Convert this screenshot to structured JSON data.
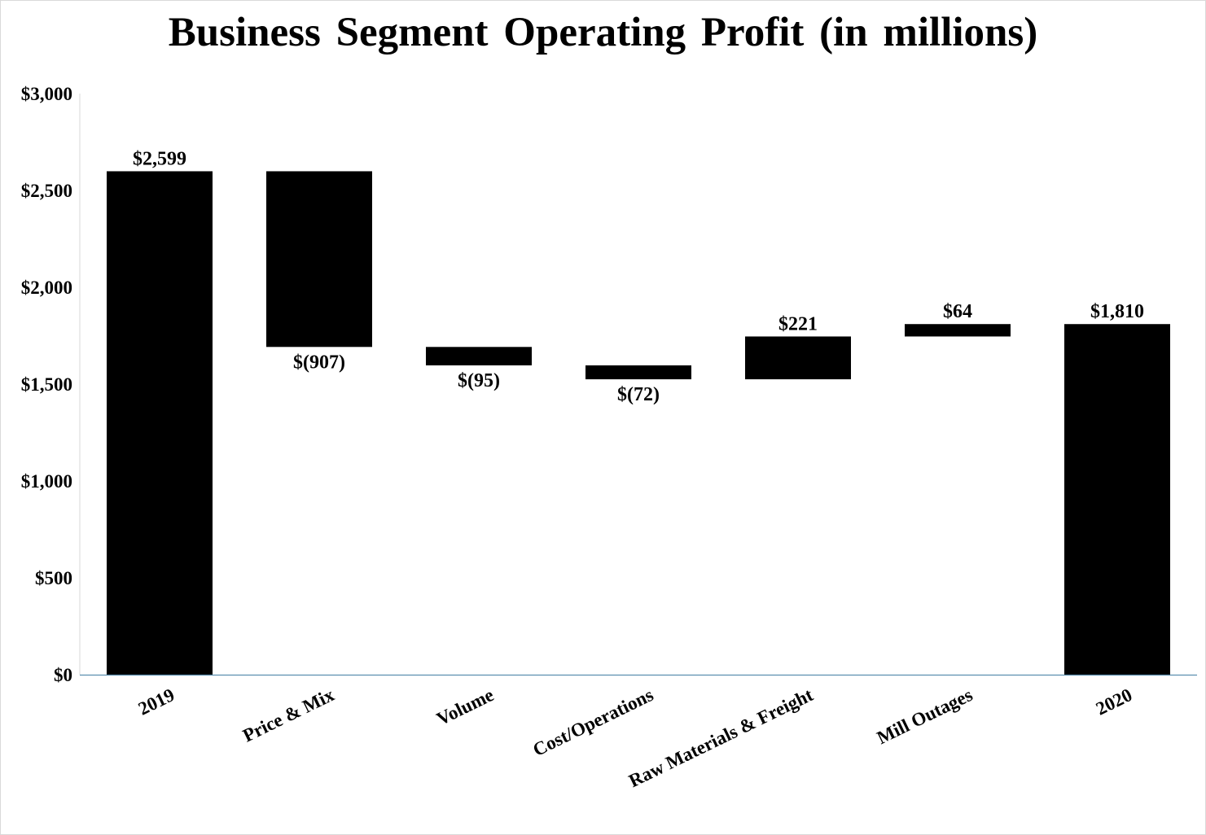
{
  "chart_data": {
    "type": "waterfall",
    "title": "Business Segment Operating Profit (in millions)",
    "xlabel": "",
    "ylabel": "",
    "ylim": [
      0,
      3000
    ],
    "yticks": [
      0,
      500,
      1000,
      1500,
      2000,
      2500,
      3000
    ],
    "ytick_labels": [
      "$0",
      "$500",
      "$1,000",
      "$1,500",
      "$2,000",
      "$2,500",
      "$3,000"
    ],
    "grid": false,
    "legend": "none",
    "categories": [
      "2019",
      "Price & Mix",
      "Volume",
      "Cost/Operations",
      "Raw Materials & Freight",
      "Mill Outages",
      "2020"
    ],
    "bars": [
      {
        "category": "2019",
        "kind": "total",
        "start": 0,
        "end": 2599,
        "label": "$2,599"
      },
      {
        "category": "Price & Mix",
        "kind": "decrease",
        "start": 2599,
        "end": 1692,
        "label": "$(907)"
      },
      {
        "category": "Volume",
        "kind": "decrease",
        "start": 1692,
        "end": 1597,
        "label": "$(95)"
      },
      {
        "category": "Cost/Operations",
        "kind": "decrease",
        "start": 1597,
        "end": 1525,
        "label": "$(72)"
      },
      {
        "category": "Raw Materials & Freight",
        "kind": "increase",
        "start": 1525,
        "end": 1746,
        "label": "$221"
      },
      {
        "category": "Mill Outages",
        "kind": "increase",
        "start": 1746,
        "end": 1810,
        "label": "$64"
      },
      {
        "category": "2020",
        "kind": "total",
        "start": 0,
        "end": 1810,
        "label": "$1,810"
      }
    ],
    "colors": {
      "bar": "#000000",
      "axis": "#5b8fb0",
      "text": "#000000"
    }
  }
}
